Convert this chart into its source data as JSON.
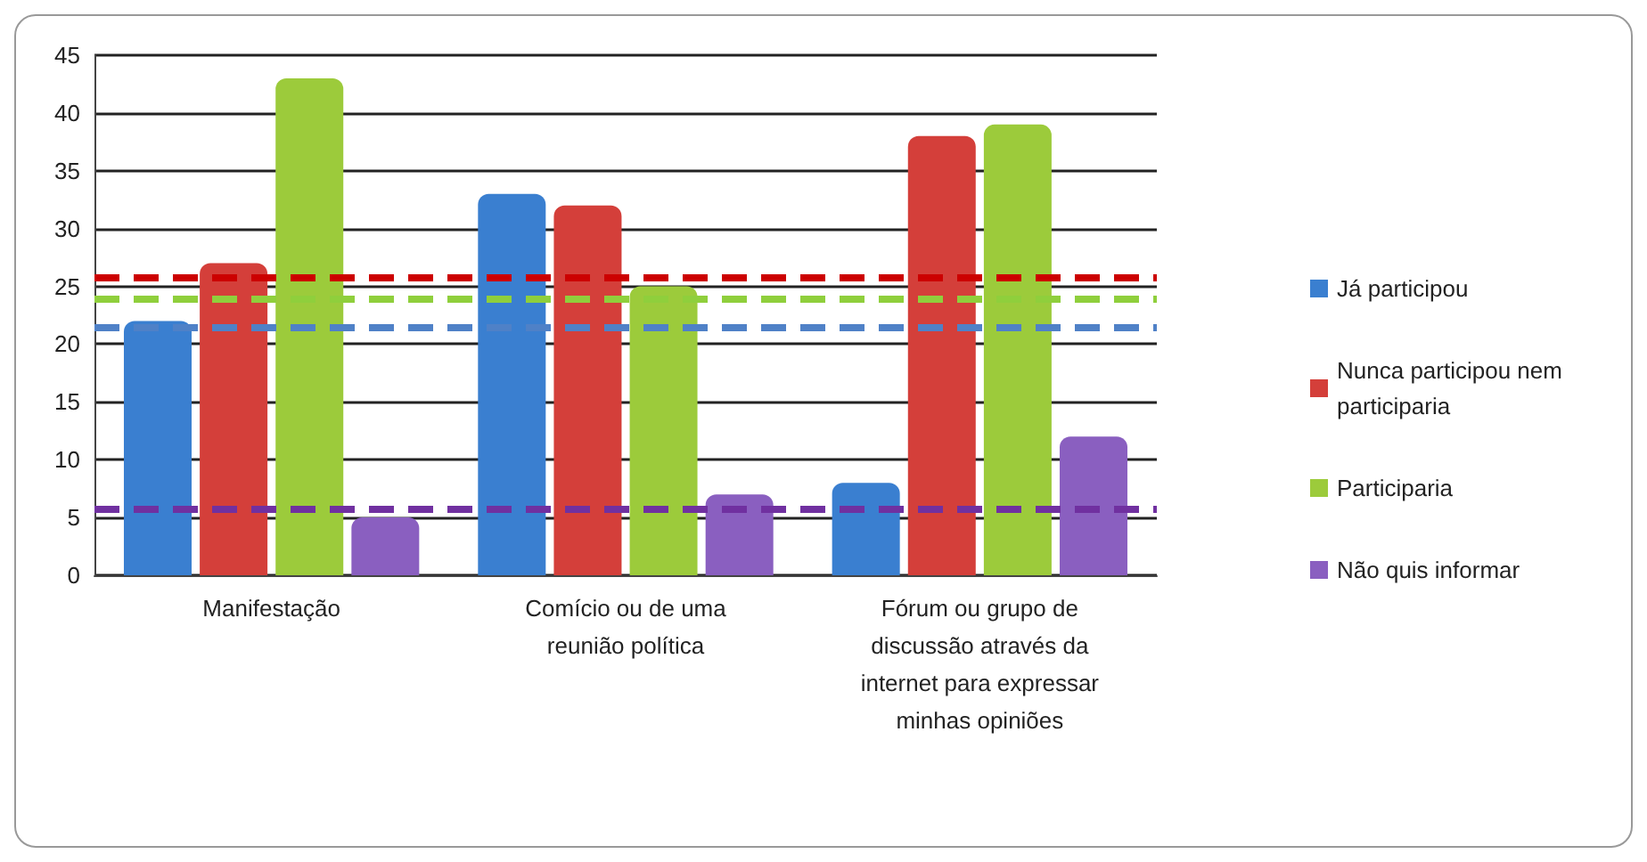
{
  "chart_data": {
    "type": "bar",
    "categories": [
      "Manifestação",
      "Comício ou de uma reunião política",
      "Fórum ou grupo de discussão através da internet para expressar minhas opiniões"
    ],
    "series": [
      {
        "name": "Já participou",
        "color": "#3a7fd0",
        "values": [
          22,
          33,
          8
        ]
      },
      {
        "name": "Nunca participou nem participaria",
        "color": "#d43f3a",
        "values": [
          27,
          32,
          38
        ]
      },
      {
        "name": "Participaria",
        "color": "#9ccb3b",
        "values": [
          43,
          25,
          39
        ]
      },
      {
        "name": "Não quis informar",
        "color": "#8a5fc0",
        "values": [
          5,
          7,
          12
        ]
      }
    ],
    "ylim": [
      0,
      45
    ],
    "yticks": [
      0,
      5,
      10,
      15,
      20,
      25,
      30,
      35,
      40,
      45
    ],
    "grid": "y",
    "legend": "right",
    "ref_lines": [
      {
        "axis": "y",
        "value": 25.8,
        "color": "#cc0000",
        "line_style": "dashed"
      },
      {
        "axis": "y",
        "value": 24,
        "color": "#8fcf3c",
        "line_style": "dashed"
      },
      {
        "axis": "y",
        "value": 21.5,
        "color": "#4f81c7",
        "line_style": "dashed"
      },
      {
        "axis": "y",
        "value": 5.7,
        "color": "#7030a0",
        "line_style": "dashed"
      }
    ]
  }
}
